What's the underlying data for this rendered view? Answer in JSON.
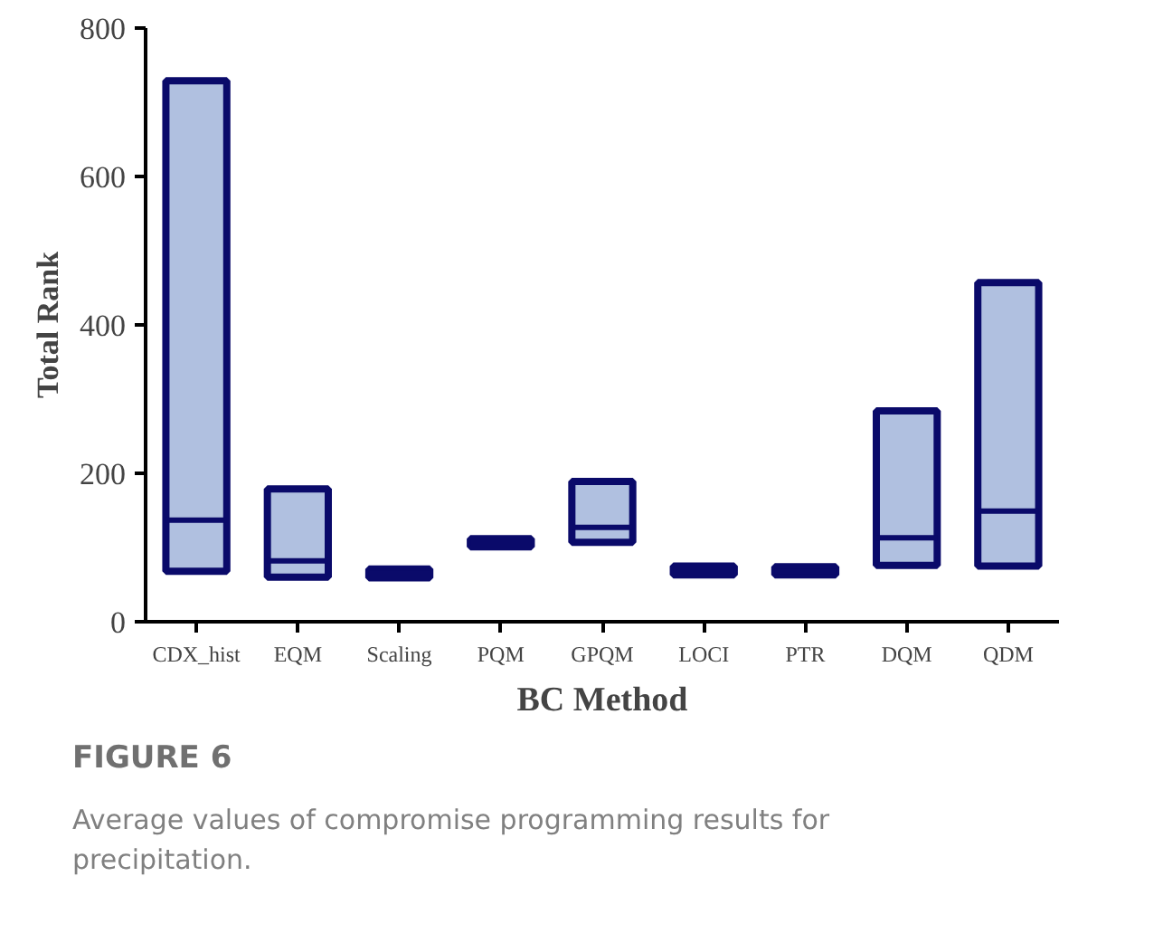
{
  "chart_data": {
    "type": "box",
    "xlabel": "BC Method",
    "ylabel": "Total Rank",
    "categories": [
      "CDX_hist",
      "EQM",
      "Scaling",
      "PQM",
      "GPQM",
      "LOCI",
      "PTR",
      "DQM",
      "QDM"
    ],
    "boxes": [
      {
        "low": 68,
        "q1": 68,
        "median": 137,
        "q3": 729,
        "high": 729
      },
      {
        "low": 60,
        "q1": 60,
        "median": 82,
        "q3": 179,
        "high": 179
      },
      {
        "low": 59,
        "q1": 59,
        "median": 65,
        "q3": 71,
        "high": 71
      },
      {
        "low": 101,
        "q1": 101,
        "median": 106,
        "q3": 112,
        "high": 112
      },
      {
        "low": 107,
        "q1": 107,
        "median": 127,
        "q3": 189,
        "high": 189
      },
      {
        "low": 63,
        "q1": 63,
        "median": 69,
        "q3": 75,
        "high": 75
      },
      {
        "low": 63,
        "q1": 63,
        "median": 68,
        "q3": 74,
        "high": 74
      },
      {
        "low": 76,
        "q1": 76,
        "median": 113,
        "q3": 284,
        "high": 284
      },
      {
        "low": 75,
        "q1": 75,
        "median": 149,
        "q3": 457,
        "high": 457
      }
    ],
    "color": "#b0c0e0",
    "ylim": [
      0,
      800
    ],
    "yticks": [
      0,
      200,
      400,
      600,
      800
    ],
    "grid": false,
    "annotations": [
      "FIGURE 6",
      "Average values of compromise programming results for precipitation."
    ]
  }
}
